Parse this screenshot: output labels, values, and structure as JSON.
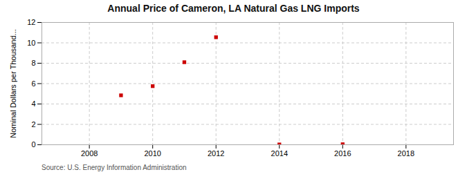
{
  "chart_data": {
    "type": "scatter",
    "title": "Annual Price of Cameron, LA Natural Gas LNG Imports",
    "ylabel": "Nominal Dollars per Thousand...",
    "annotations": [
      "Source: U.S. Energy Information Administration"
    ],
    "x": [
      2009,
      2010,
      2011,
      2012,
      2014,
      2016
    ],
    "values": [
      4.85,
      5.75,
      8.1,
      10.55,
      0.03,
      0.05
    ],
    "color": "#cc0000",
    "marker": "square",
    "xlim": [
      2006.5,
      2019.5
    ],
    "ylim": [
      0,
      12
    ],
    "xticks": [
      2008,
      2010,
      2012,
      2014,
      2016,
      2018
    ],
    "yticks": [
      0,
      2,
      4,
      6,
      8,
      10,
      12
    ],
    "grid": true
  }
}
